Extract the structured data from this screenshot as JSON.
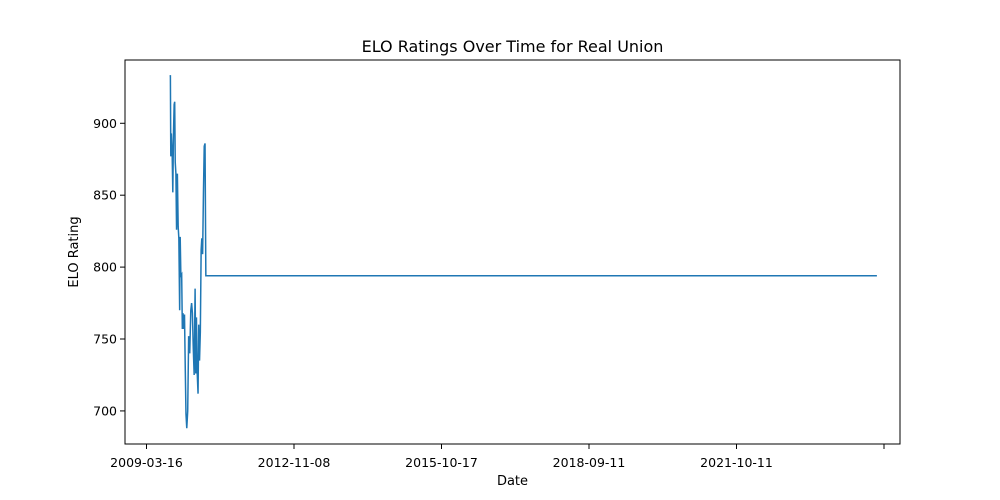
{
  "chart_data": {
    "type": "line",
    "title": "ELO Ratings Over Time for Real Union",
    "xlabel": "Date",
    "ylabel": "ELO Rating",
    "x_tick_labels": [
      "2009-03-16",
      "2012-11-08",
      "2015-10-17",
      "2018-09-11",
      "2021-10-11",
      ""
    ],
    "y_ticks": [
      700,
      750,
      800,
      850,
      900
    ],
    "xlim": [
      "2008-09-01",
      "2024-06-20"
    ],
    "ylim": [
      677,
      944
    ],
    "grid": false,
    "color": "#1f77b4",
    "series": [
      {
        "x": [
          "2009-07-30",
          "2009-08-05",
          "2009-08-08",
          "2009-08-12",
          "2009-08-18",
          "2009-08-23",
          "2009-08-28",
          "2009-09-02",
          "2009-09-06",
          "2009-09-10",
          "2009-09-15",
          "2009-09-20",
          "2009-09-26",
          "2009-10-02",
          "2009-10-07",
          "2009-10-13",
          "2009-10-17",
          "2009-10-22",
          "2009-10-28",
          "2009-11-02",
          "2009-11-07",
          "2009-11-12",
          "2009-11-18",
          "2009-11-24",
          "2009-11-29",
          "2009-12-05",
          "2009-12-12",
          "2009-12-19",
          "2009-12-27",
          "2010-01-04",
          "2010-01-10",
          "2010-01-16",
          "2010-01-22",
          "2010-01-29",
          "2010-02-05",
          "2010-02-10",
          "2010-02-15",
          "2010-02-20",
          "2010-02-27",
          "2010-03-04",
          "2010-03-10",
          "2010-03-16",
          "2010-03-22",
          "2010-03-27",
          "2010-04-02",
          "2010-04-08",
          "2010-04-14",
          "2010-04-20",
          "2010-04-26",
          "2010-05-02",
          "2010-05-08",
          "2010-05-14",
          "2010-05-19",
          "2010-05-24",
          "2010-05-29",
          "2010-06-04",
          "2010-06-10",
          "2010-06-15",
          "2010-06-20",
          "2010-06-26",
          "2010-07-02",
          "2010-07-08",
          "2010-07-15",
          "2010-07-22",
          "2010-07-28",
          "2010-08-02",
          "2010-08-06",
          "2010-08-09",
          "2010-08-12",
          "2010-08-16",
          "2010-08-21",
          "2010-08-26",
          "2010-09-01",
          "2023-12-31"
        ],
        "y": [
          933,
          933,
          877,
          893,
          880,
          852,
          893,
          913,
          915,
          873,
          865,
          826,
          865,
          828,
          820,
          770,
          821,
          794,
          795,
          757,
          768,
          757,
          767,
          728,
          698,
          688,
          700,
          752,
          740,
          770,
          775,
          768,
          745,
          725,
          785,
          726,
          765,
          728,
          712,
          760,
          735,
          755,
          812,
          820,
          809,
          851,
          884,
          886,
          794,
          794,
          794,
          794,
          794,
          794,
          794,
          794,
          794,
          794,
          794,
          794,
          794,
          794,
          794,
          794,
          794,
          794,
          794,
          794,
          794,
          794,
          794,
          794,
          794,
          794
        ]
      }
    ]
  }
}
